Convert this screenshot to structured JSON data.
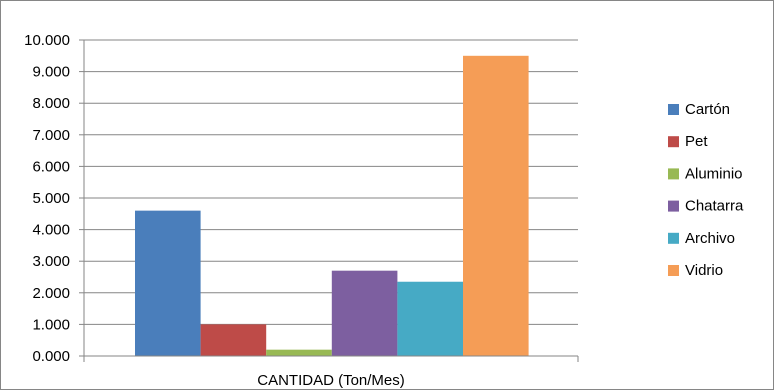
{
  "chart_data": {
    "type": "bar",
    "categories": [
      "CANTIDAD (Ton/Mes)"
    ],
    "series": [
      {
        "name": "Cartón",
        "values": [
          4600
        ],
        "color": "#4a7ebb"
      },
      {
        "name": "Pet",
        "values": [
          1000
        ],
        "color": "#be4b48"
      },
      {
        "name": "Aluminio",
        "values": [
          200
        ],
        "color": "#98b954"
      },
      {
        "name": "Chatarra",
        "values": [
          2700
        ],
        "color": "#7d5fa0"
      },
      {
        "name": "Archivo",
        "values": [
          2350
        ],
        "color": "#46aac5"
      },
      {
        "name": "Vidrio",
        "values": [
          9500
        ],
        "color": "#f59d56"
      }
    ],
    "yticks": [
      "0.000",
      "1.000",
      "2.000",
      "3.000",
      "4.000",
      "5.000",
      "6.000",
      "7.000",
      "8.000",
      "9.000",
      "10.000"
    ],
    "ylim": [
      0,
      10000
    ],
    "xlabel": "",
    "ylabel": "",
    "grid": true,
    "legend": "right"
  }
}
